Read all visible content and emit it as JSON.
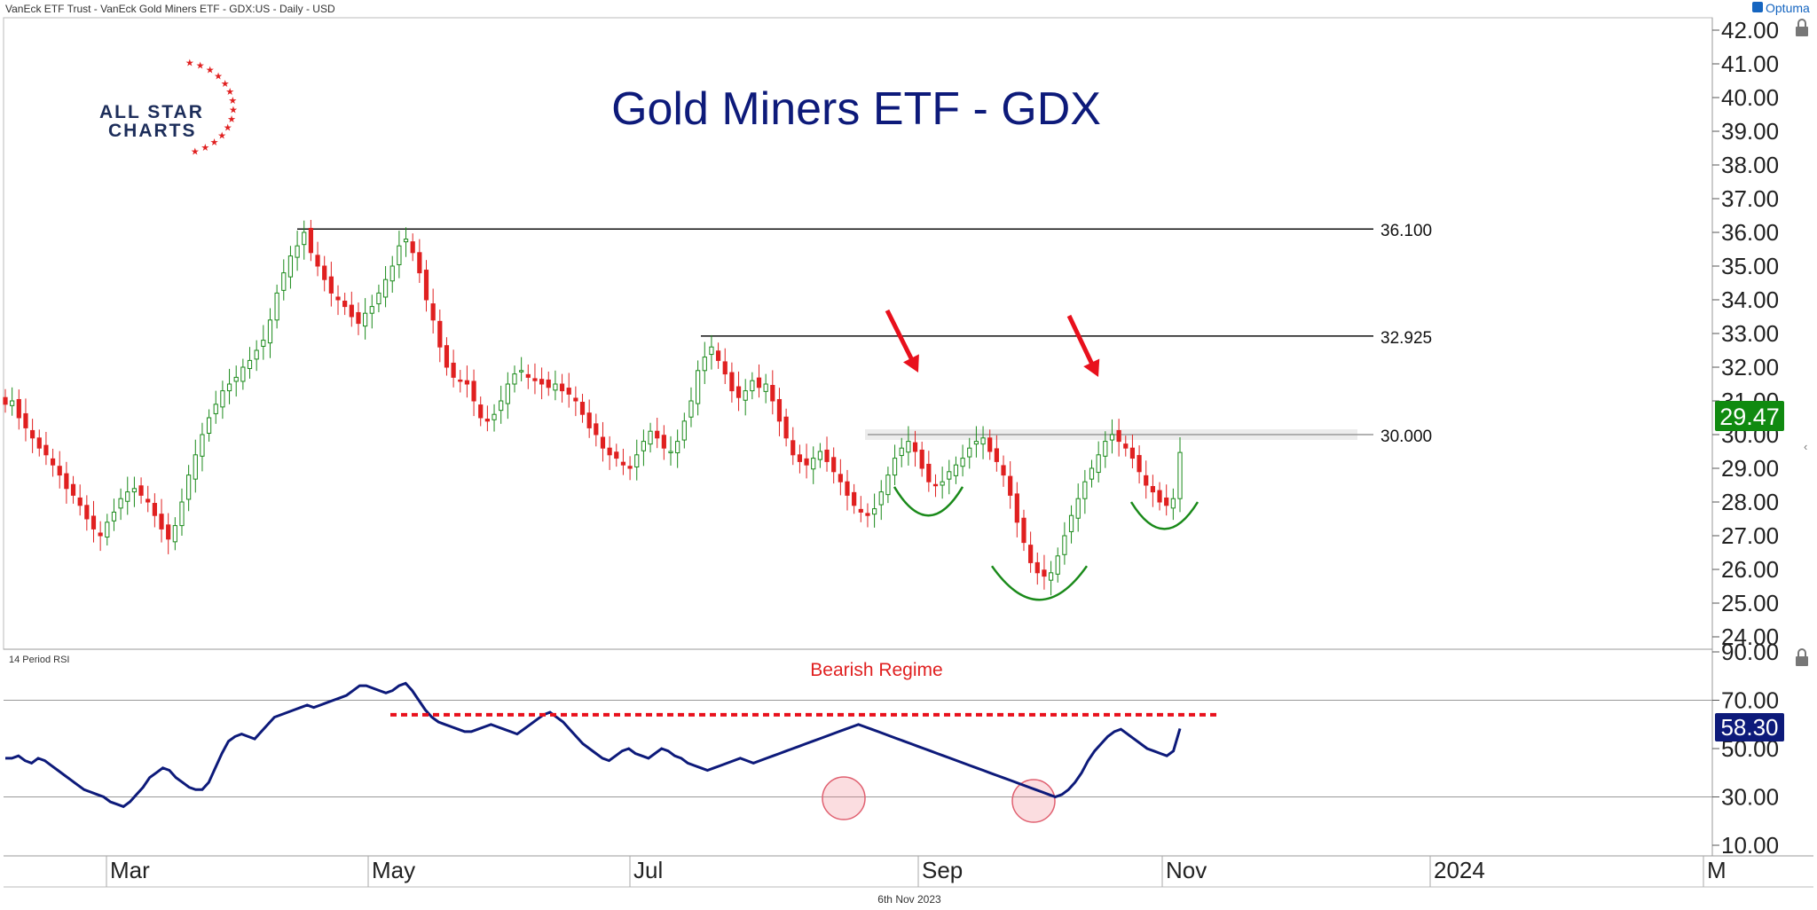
{
  "header": {
    "instrument": "VanEck ETF Trust - VanEck Gold Miners ETF - GDX:US - Daily - USD",
    "vendor": "Optuma"
  },
  "logo": {
    "line1": "ALL STAR",
    "line2": "CHARTS"
  },
  "footer": {
    "date": "6th Nov 2023"
  },
  "colors": {
    "title": "#0d1a7a",
    "up": "#1a8a1a",
    "down": "#e02020",
    "rsi": "#0d1a7a",
    "arrow": "#e8101c",
    "price_badge": "#108a10",
    "rsi_badge": "#0d1a7a"
  },
  "chart_data": [
    {
      "type": "candlestick",
      "title": "Gold Miners ETF - GDX",
      "ylim": [
        24,
        42
      ],
      "y_ticks": [
        "42.00",
        "41.00",
        "40.00",
        "39.00",
        "38.00",
        "37.00",
        "36.00",
        "35.00",
        "34.00",
        "33.00",
        "32.00",
        "31.00",
        "30.00",
        "29.00",
        "28.00",
        "27.00",
        "26.00",
        "25.00",
        "24.00"
      ],
      "last_price_label": "29.47",
      "last_price": 29.47,
      "x_ticks": [
        "Mar",
        "May",
        "Jul",
        "Sep",
        "Nov",
        "2024",
        "M"
      ],
      "levels": [
        {
          "value": 36.1,
          "label": "36.100"
        },
        {
          "value": 32.925,
          "label": "32.925"
        },
        {
          "value": 30.0,
          "label": "30.000"
        }
      ],
      "closes_approx": [
        30.9,
        31.0,
        30.5,
        30.2,
        29.9,
        29.6,
        29.4,
        29.1,
        28.8,
        28.4,
        28.2,
        27.9,
        27.5,
        27.2,
        27.0,
        27.4,
        27.7,
        28.1,
        28.3,
        28.4,
        28.2,
        28.0,
        27.6,
        27.2,
        26.9,
        27.3,
        28.0,
        28.8,
        29.4,
        30.0,
        30.5,
        30.9,
        31.3,
        31.5,
        31.7,
        32.0,
        32.2,
        32.5,
        32.8,
        33.4,
        34.2,
        34.8,
        35.3,
        35.6,
        36.0,
        35.4,
        35.0,
        34.6,
        34.2,
        34.0,
        33.8,
        33.5,
        33.3,
        33.6,
        33.8,
        34.2,
        34.6,
        35.0,
        35.6,
        35.8,
        35.4,
        34.8,
        34.0,
        33.4,
        32.6,
        32.0,
        31.7,
        31.6,
        31.5,
        31.0,
        30.5,
        30.4,
        30.6,
        31.0,
        31.5,
        31.8,
        31.9,
        31.7,
        31.6,
        31.5,
        31.4,
        31.5,
        31.3,
        31.2,
        31.0,
        30.6,
        30.2,
        30.0,
        29.6,
        29.4,
        29.3,
        29.1,
        29.0,
        29.4,
        29.8,
        30.1,
        29.9,
        29.6,
        29.5,
        29.8,
        30.4,
        31.0,
        31.9,
        32.3,
        32.6,
        32.2,
        31.8,
        31.3,
        31.1,
        31.3,
        31.6,
        31.4,
        31.5,
        31.0,
        30.4,
        29.9,
        29.4,
        29.2,
        29.1,
        29.3,
        29.5,
        29.2,
        28.9,
        28.6,
        28.2,
        27.9,
        27.7,
        27.6,
        27.8,
        28.3,
        28.8,
        29.3,
        29.6,
        29.8,
        29.5,
        29.0,
        28.6,
        28.5,
        28.6,
        28.9,
        29.1,
        29.3,
        29.6,
        29.8,
        29.9,
        29.5,
        29.2,
        28.8,
        28.2,
        27.4,
        26.8,
        26.2,
        25.9,
        25.8,
        25.9,
        26.4,
        27.0,
        27.6,
        28.1,
        28.6,
        29.0,
        29.4,
        29.8,
        30.0,
        29.8,
        29.6,
        29.3,
        28.9,
        28.5,
        28.3,
        28.0,
        27.9,
        28.1,
        29.47
      ],
      "rounded_bottoms": [
        "Aug-Sep",
        "Oct",
        "Oct-Nov"
      ],
      "resistance_arrows": 2
    },
    {
      "type": "line",
      "title": "14 Period RSI",
      "annotation": "Bearish Regime",
      "ylim": [
        10,
        90
      ],
      "y_ticks": [
        "90.00",
        "70.00",
        "50.00",
        "30.00",
        "10.00"
      ],
      "reference_lines": [
        70,
        30
      ],
      "bearish_resistance": 64,
      "last_value_label": "58.30",
      "last_value": 58.3,
      "values_approx": [
        46,
        46,
        47,
        45,
        44,
        46,
        45,
        43,
        41,
        39,
        37,
        35,
        33,
        32,
        31,
        30,
        28,
        27,
        26,
        28,
        31,
        34,
        38,
        40,
        42,
        41,
        38,
        36,
        34,
        33,
        33,
        36,
        42,
        48,
        53,
        55,
        56,
        55,
        54,
        57,
        60,
        63,
        64,
        65,
        66,
        67,
        68,
        67,
        68,
        69,
        70,
        71,
        72,
        74,
        76,
        76,
        75,
        74,
        73,
        74,
        76,
        77,
        74,
        70,
        66,
        63,
        61,
        60,
        59,
        58,
        57,
        57,
        58,
        59,
        60,
        59,
        58,
        57,
        56,
        58,
        60,
        62,
        64,
        65,
        63,
        61,
        58,
        55,
        52,
        50,
        48,
        46,
        45,
        47,
        49,
        50,
        48,
        47,
        46,
        48,
        50,
        49,
        47,
        46,
        44,
        43,
        42,
        41,
        42,
        43,
        44,
        45,
        46,
        45,
        44,
        45,
        46,
        47,
        48,
        49,
        50,
        51,
        52,
        53,
        54,
        55,
        56,
        57,
        58,
        59,
        60,
        59,
        58,
        57,
        56,
        55,
        54,
        53,
        52,
        51,
        50,
        49,
        48,
        47,
        46,
        45,
        44,
        43,
        42,
        41,
        40,
        39,
        38,
        37,
        36,
        35,
        34,
        33,
        32,
        31,
        30,
        31,
        33,
        36,
        40,
        45,
        49,
        52,
        55,
        57,
        58,
        56,
        54,
        52,
        50,
        49,
        48,
        47,
        49,
        58.3
      ],
      "oversold_circles": [
        "Aug",
        "Oct"
      ]
    }
  ]
}
